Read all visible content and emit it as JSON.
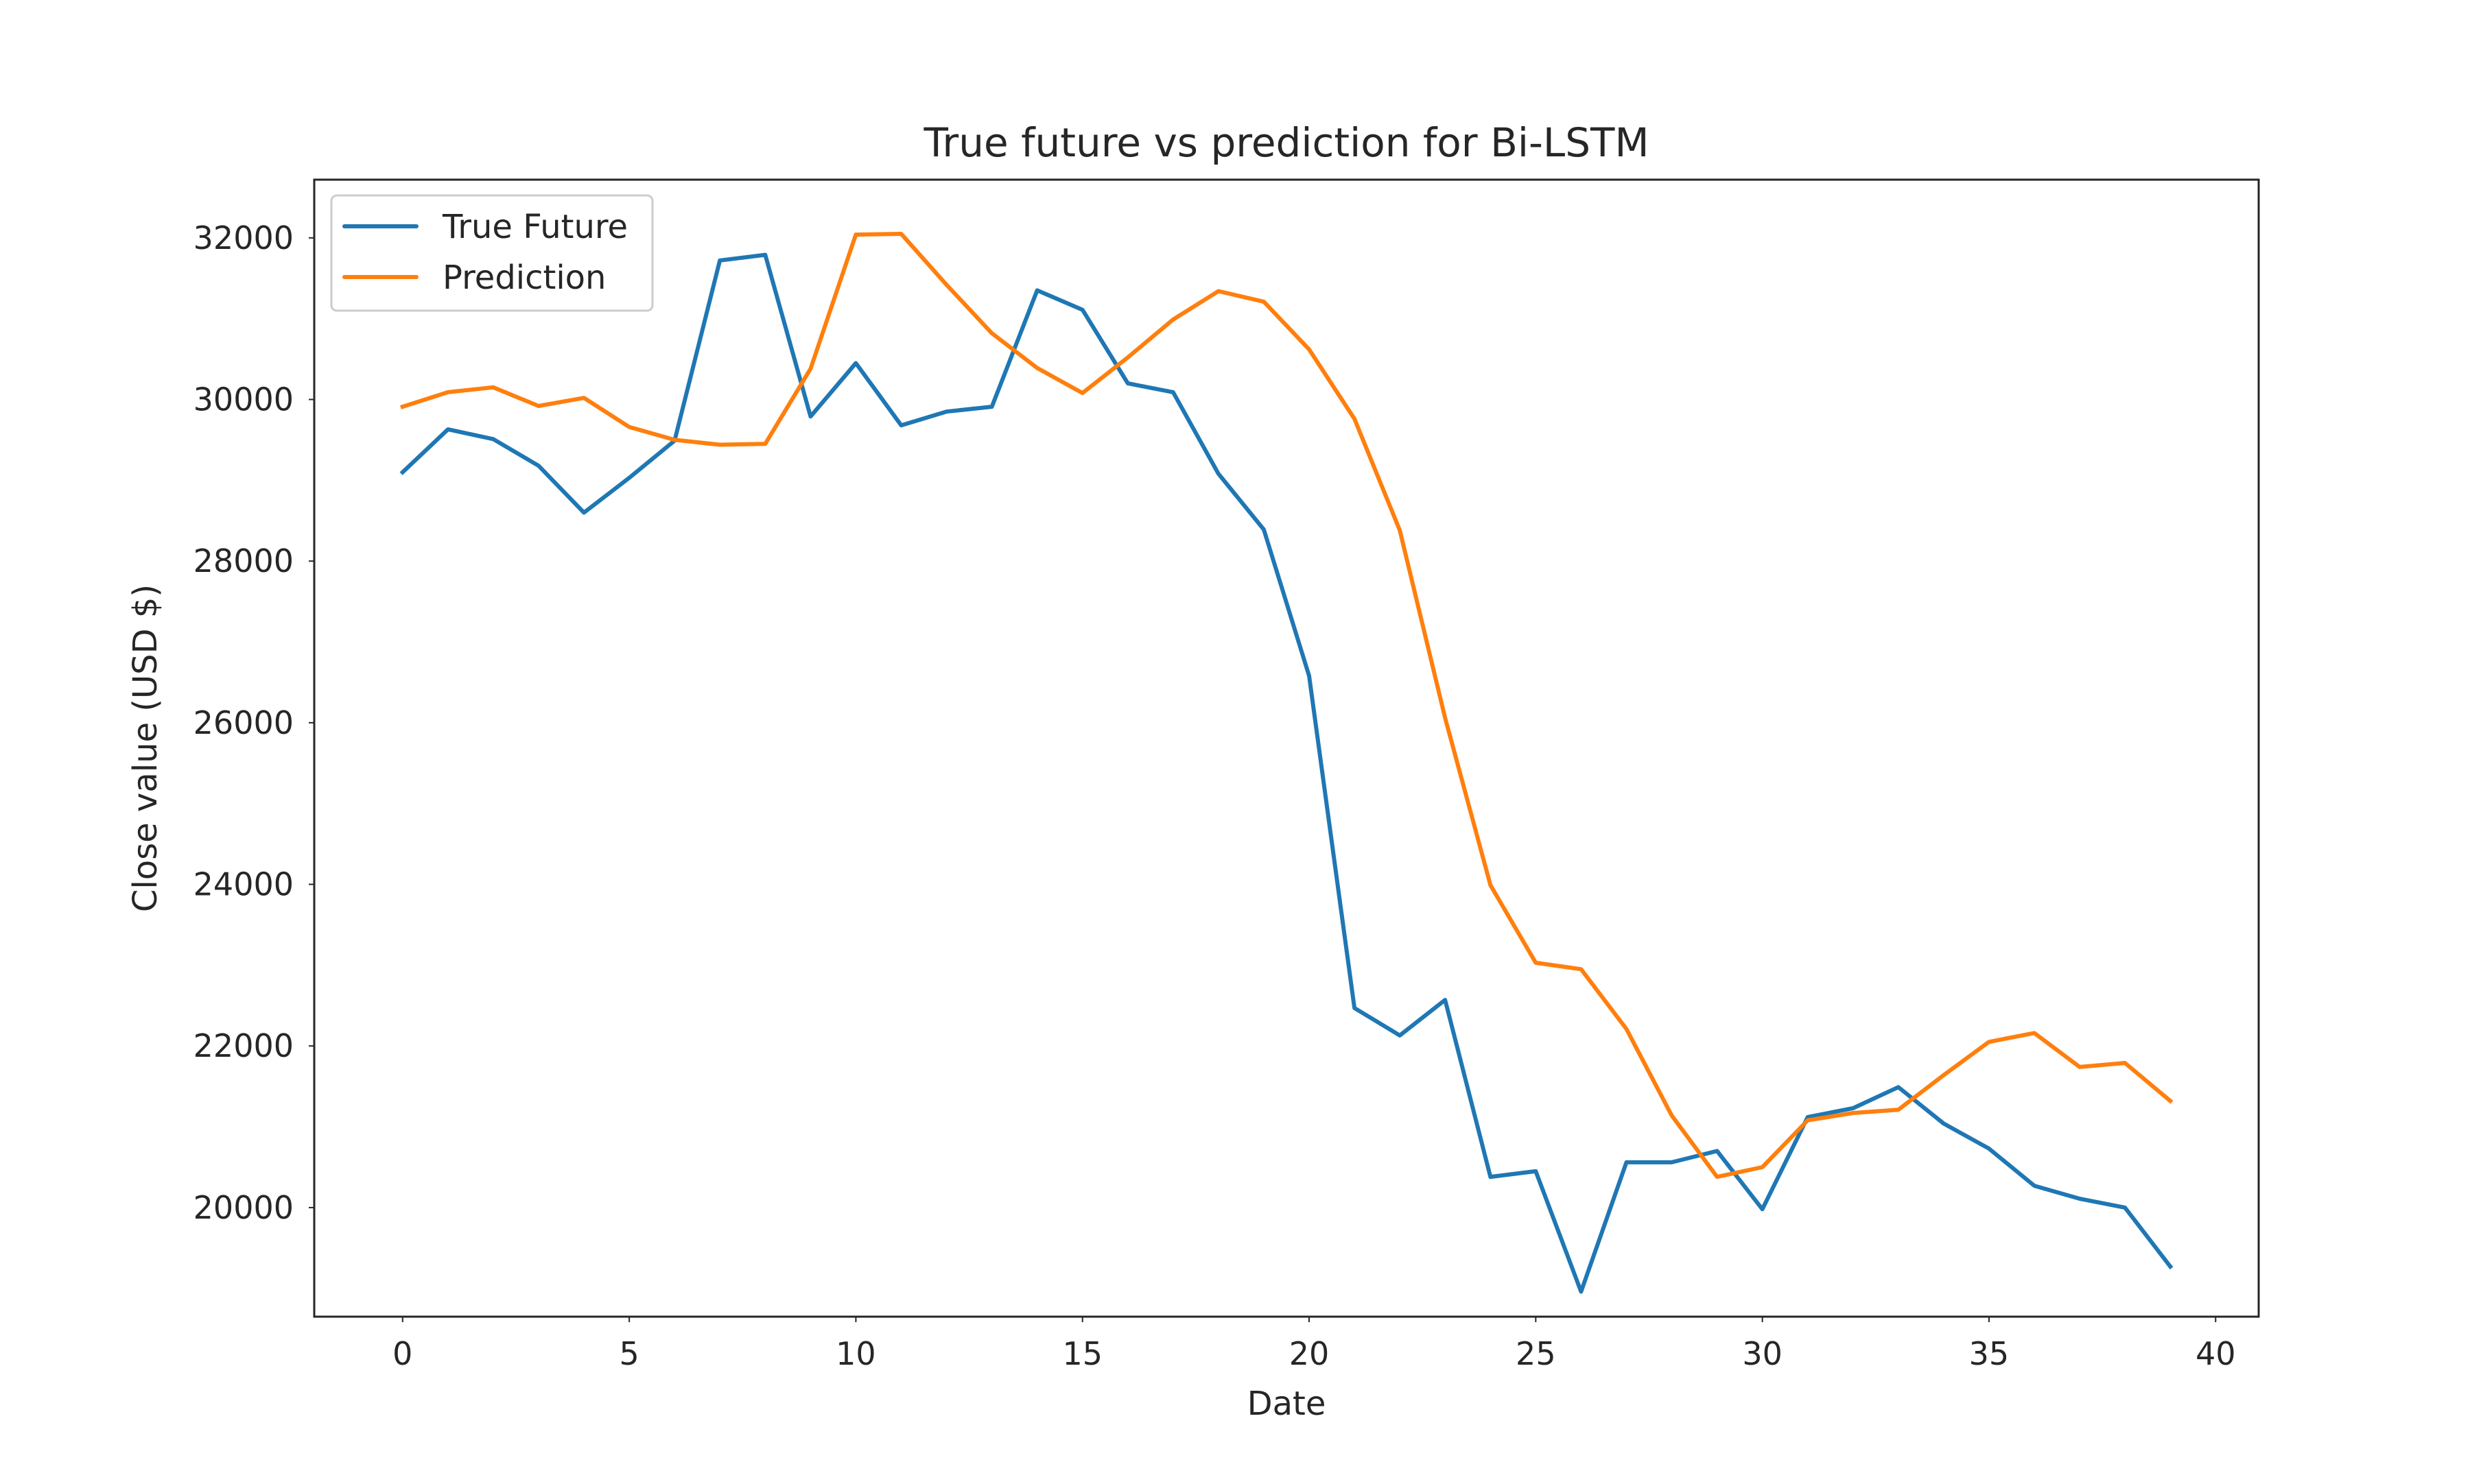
{
  "chart_data": {
    "type": "line",
    "title": "True future vs prediction for Bi-LSTM",
    "xlabel": "Date",
    "ylabel": "Close value (USD $)",
    "xlim": [
      -1.95,
      40.95
    ],
    "ylim": [
      18650,
      32720
    ],
    "xticks": [
      0,
      5,
      10,
      15,
      20,
      25,
      30,
      35,
      40
    ],
    "xtick_labels": [
      "0",
      "5",
      "10",
      "15",
      "20",
      "25",
      "30",
      "35",
      "40"
    ],
    "yticks": [
      20000,
      22000,
      24000,
      26000,
      28000,
      30000,
      32000
    ],
    "ytick_labels": [
      "20000",
      "22000",
      "24000",
      "26000",
      "28000",
      "30000",
      "32000"
    ],
    "grid": false,
    "legend_position": "top-left",
    "x": [
      0,
      1,
      2,
      3,
      4,
      5,
      6,
      7,
      8,
      9,
      10,
      11,
      12,
      13,
      14,
      15,
      16,
      17,
      18,
      19,
      20,
      21,
      22,
      23,
      24,
      25,
      26,
      27,
      28,
      29,
      30,
      31,
      32,
      33,
      34,
      35,
      36,
      37,
      38,
      39
    ],
    "series": [
      {
        "name": "True Future",
        "color": "#1f77b4",
        "values": [
          29100,
          29630,
          29510,
          29180,
          28600,
          29030,
          29490,
          31720,
          31790,
          29790,
          30450,
          29680,
          29850,
          29910,
          31350,
          31110,
          30200,
          30090,
          29080,
          28390,
          26580,
          22470,
          22130,
          22570,
          20380,
          20450,
          18960,
          20560,
          20560,
          20700,
          19980,
          21120,
          21230,
          21490,
          21040,
          20730,
          20270,
          20110,
          20000,
          19270
        ]
      },
      {
        "name": "Prediction",
        "color": "#ff7f0e",
        "values": [
          29910,
          30090,
          30150,
          29920,
          30020,
          29660,
          29500,
          29440,
          29450,
          30380,
          32040,
          32050,
          31420,
          30820,
          30390,
          30080,
          30520,
          30990,
          31340,
          31210,
          30620,
          29760,
          28380,
          26060,
          23990,
          23030,
          22950,
          22210,
          21140,
          20380,
          20500,
          21080,
          21170,
          21210,
          21640,
          22050,
          22160,
          21740,
          21790,
          21320
        ]
      }
    ]
  }
}
